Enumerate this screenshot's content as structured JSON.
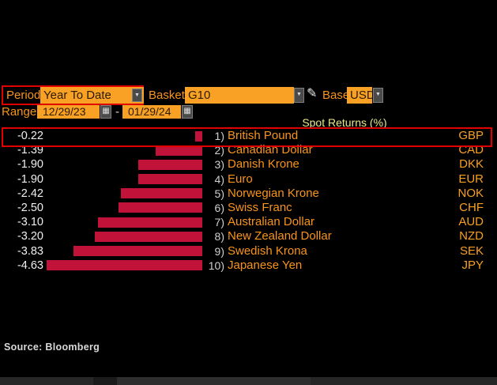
{
  "toolbar": {
    "period": {
      "label": "Period",
      "value": "Year To Date"
    },
    "basket": {
      "label": "Basket",
      "value": "G10"
    },
    "base": {
      "label": "Base",
      "value": "USD"
    },
    "range": {
      "label": "Range",
      "start": "12/29/23",
      "separator": "-",
      "end": "01/29/24"
    }
  },
  "icons": {
    "dropdown_arrow": "▼",
    "calendar": "▦",
    "pencil": "✎"
  },
  "chart_data": {
    "type": "bar",
    "orientation": "horizontal",
    "title": "Spot Returns (%)",
    "categories": [
      "British Pound",
      "Canadian Dollar",
      "Danish Krone",
      "Euro",
      "Norwegian Krone",
      "Swiss Franc",
      "Australian Dollar",
      "New Zealand Dollar",
      "Swedish Krona",
      "Japanese Yen"
    ],
    "codes": [
      "GBP",
      "CAD",
      "DKK",
      "EUR",
      "NOK",
      "CHF",
      "AUD",
      "NZD",
      "SEK",
      "JPY"
    ],
    "values": [
      -0.22,
      -1.39,
      -1.9,
      -1.9,
      -2.42,
      -2.5,
      -3.1,
      -3.2,
      -3.83,
      -4.63
    ],
    "xlim": [
      -4.63,
      0
    ],
    "grid": false,
    "legend": false,
    "bar_color": "#C1123A",
    "highlighted_row": 0,
    "rows": [
      {
        "num": "1)",
        "value": "-0.22",
        "label": "British Pound",
        "code": "GBP"
      },
      {
        "num": "2)",
        "value": "-1.39",
        "label": "Canadian Dollar",
        "code": "CAD"
      },
      {
        "num": "3)",
        "value": "-1.90",
        "label": "Danish Krone",
        "code": "DKK"
      },
      {
        "num": "4)",
        "value": "-1.90",
        "label": "Euro",
        "code": "EUR"
      },
      {
        "num": "5)",
        "value": "-2.42",
        "label": "Norwegian Krone",
        "code": "NOK"
      },
      {
        "num": "6)",
        "value": "-2.50",
        "label": "Swiss Franc",
        "code": "CHF"
      },
      {
        "num": "7)",
        "value": "-3.10",
        "label": "Australian Dollar",
        "code": "AUD"
      },
      {
        "num": "8)",
        "value": "-3.20",
        "label": "New Zealand Dollar",
        "code": "NZD"
      },
      {
        "num": "9)",
        "value": "-3.83",
        "label": "Swedish Krona",
        "code": "SEK"
      },
      {
        "num": "10)",
        "value": "-4.63",
        "label": "Japanese Yen",
        "code": "JPY"
      }
    ]
  },
  "footer": {
    "source": "Source: Bloomberg"
  },
  "colors": {
    "background": "#000000",
    "field_amber": "#F8A125",
    "label_orange": "#F8941A",
    "bar_red": "#C1123A",
    "highlight_border": "#E00000",
    "title_yellow": "#E9E98C",
    "value_white": "#EFEFEF",
    "number_gray": "#CFCFCF"
  }
}
